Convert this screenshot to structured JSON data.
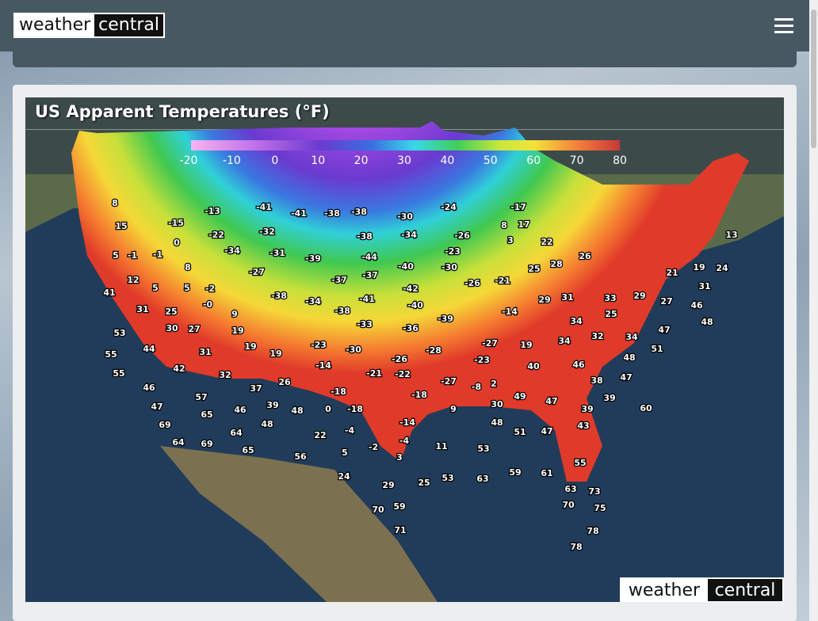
{
  "header": {
    "logo": {
      "left": "weather",
      "right": "central"
    }
  },
  "map": {
    "title": "US Apparent Temperatures (°F)",
    "legend": [
      "-20",
      "-10",
      "0",
      "10",
      "20",
      "30",
      "40",
      "50",
      "60",
      "70",
      "80"
    ],
    "labels": [
      "8",
      "-13",
      "-41",
      "-41",
      "-38",
      "-38",
      "-30",
      "-24",
      "-17",
      "15",
      "-15",
      "8",
      "17",
      "-22",
      "-32",
      "-38",
      "-34",
      "-26",
      "13",
      "0",
      "3",
      "22",
      "5",
      "-1",
      "-1",
      "-34",
      "-31",
      "-39",
      "-44",
      "-23",
      "26",
      "8",
      "-27",
      "-40",
      "-30",
      "25",
      "28",
      "21",
      "19",
      "24",
      "12",
      "-37",
      "-37",
      "-26",
      "-21",
      "5",
      "5",
      "-2",
      "-42",
      "31",
      "41",
      "-38",
      "-34",
      "-41",
      "29",
      "31",
      "33",
      "29",
      "27",
      "-0",
      "31",
      "25",
      "-40",
      "46",
      "-38",
      "9",
      "-14",
      "25",
      "-39",
      "34",
      "48",
      "-33",
      "30",
      "27",
      "19",
      "-36",
      "47",
      "53",
      "32",
      "34",
      "-23",
      "-27",
      "19",
      "34",
      "44",
      "31",
      "19",
      "-30",
      "-28",
      "51",
      "55",
      "19",
      "-26",
      "-23",
      "48",
      "-14",
      "46",
      "40",
      "42",
      "32",
      "-21",
      "-22",
      "55",
      "26",
      "-27",
      "38",
      "47",
      "46",
      "37",
      "-18",
      "-8",
      "2",
      "57",
      "-18",
      "49",
      "47",
      "39",
      "47",
      "46",
      "39",
      "48",
      "0",
      "-18",
      "9",
      "30",
      "39",
      "60",
      "65",
      "69",
      "48",
      "-14",
      "48",
      "43",
      "64",
      "-4",
      "51",
      "47",
      "22",
      "64",
      "69",
      "-4",
      "11",
      "53",
      "65",
      "-2",
      "5",
      "55",
      "56",
      "3",
      "24",
      "53",
      "63",
      "59",
      "61",
      "29",
      "25",
      "63",
      "73",
      "70",
      "59",
      "70",
      "75",
      "71",
      "78",
      "78"
    ],
    "watermark": {
      "left": "weather",
      "right": "central"
    }
  }
}
